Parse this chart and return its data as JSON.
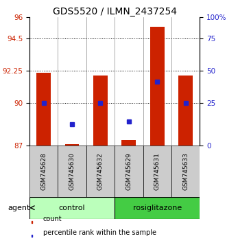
{
  "title": "GDS5520 / ILMN_2437254",
  "samples": [
    "GSM745628",
    "GSM745630",
    "GSM745632",
    "GSM745629",
    "GSM745631",
    "GSM745633"
  ],
  "bar_values": [
    92.1,
    87.1,
    91.9,
    87.4,
    95.3,
    91.9
  ],
  "blue_values": [
    90.0,
    88.5,
    90.0,
    88.7,
    91.5,
    90.0
  ],
  "y_min": 87,
  "y_max": 96,
  "y_ticks_left": [
    87,
    90,
    92.25,
    94.5,
    96
  ],
  "y_ticks_right_vals": [
    87,
    90,
    92.25,
    94.5,
    96
  ],
  "y_ticks_right_labels": [
    "0",
    "25",
    "50",
    "75",
    "100%"
  ],
  "hline_vals": [
    90,
    92.25,
    94.5
  ],
  "bar_color": "#cc2200",
  "blue_color": "#2222cc",
  "bar_width": 0.5,
  "groups": [
    {
      "label": "control",
      "samples": [
        0,
        1,
        2
      ],
      "color": "#bbffbb"
    },
    {
      "label": "rosiglitazone",
      "samples": [
        3,
        4,
        5
      ],
      "color": "#44cc44"
    }
  ],
  "sample_box_color": "#cccccc",
  "agent_label": "agent",
  "legend_items": [
    {
      "label": "count",
      "color": "#cc2200"
    },
    {
      "label": "percentile rank within the sample",
      "color": "#2222cc"
    }
  ],
  "title_fontsize": 10,
  "tick_fontsize": 7.5,
  "label_fontsize": 8,
  "sample_fontsize": 6.5
}
